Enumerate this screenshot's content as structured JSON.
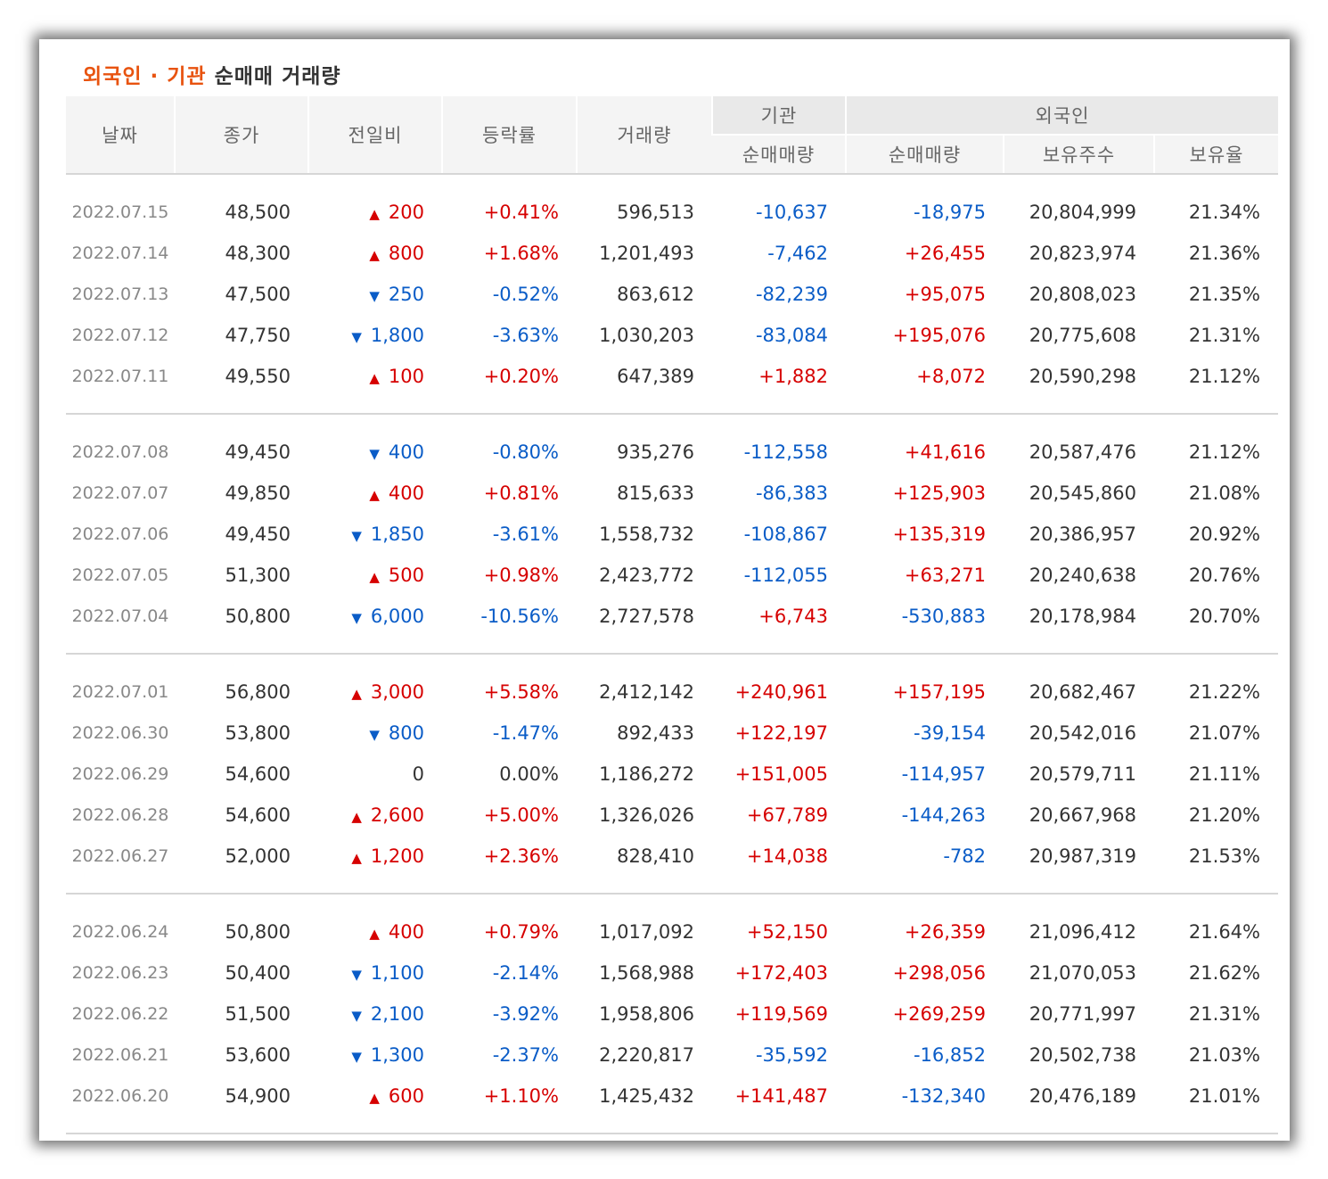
{
  "title": {
    "accent": "외국인 · 기관",
    "rest": "순매매 거래량"
  },
  "headers": {
    "date": "날짜",
    "close": "종가",
    "change": "전일비",
    "rate": "등락률",
    "volume": "거래량",
    "institution": "기관",
    "inst_net": "순매매량",
    "foreign": "외국인",
    "foreign_net": "순매매량",
    "holdings": "보유주수",
    "holding_ratio": "보유율"
  },
  "icons": {
    "up": "triangle-up-icon",
    "down": "triangle-down-icon"
  },
  "colors": {
    "up": "#d60000",
    "down": "#0a5cc7",
    "accent": "#e8530f"
  },
  "groups": [
    {
      "rows": [
        {
          "date": "2022.07.15",
          "close": "48,500",
          "dir": "up",
          "change": "200",
          "rate": "+0.41%",
          "volume": "596,513",
          "inst": "-10,637",
          "foreign": "-18,975",
          "holdings": "20,804,999",
          "ratio": "21.34%"
        },
        {
          "date": "2022.07.14",
          "close": "48,300",
          "dir": "up",
          "change": "800",
          "rate": "+1.68%",
          "volume": "1,201,493",
          "inst": "-7,462",
          "foreign": "+26,455",
          "holdings": "20,823,974",
          "ratio": "21.36%"
        },
        {
          "date": "2022.07.13",
          "close": "47,500",
          "dir": "down",
          "change": "250",
          "rate": "-0.52%",
          "volume": "863,612",
          "inst": "-82,239",
          "foreign": "+95,075",
          "holdings": "20,808,023",
          "ratio": "21.35%"
        },
        {
          "date": "2022.07.12",
          "close": "47,750",
          "dir": "down",
          "change": "1,800",
          "rate": "-3.63%",
          "volume": "1,030,203",
          "inst": "-83,084",
          "foreign": "+195,076",
          "holdings": "20,775,608",
          "ratio": "21.31%"
        },
        {
          "date": "2022.07.11",
          "close": "49,550",
          "dir": "up",
          "change": "100",
          "rate": "+0.20%",
          "volume": "647,389",
          "inst": "+1,882",
          "foreign": "+8,072",
          "holdings": "20,590,298",
          "ratio": "21.12%"
        }
      ]
    },
    {
      "rows": [
        {
          "date": "2022.07.08",
          "close": "49,450",
          "dir": "down",
          "change": "400",
          "rate": "-0.80%",
          "volume": "935,276",
          "inst": "-112,558",
          "foreign": "+41,616",
          "holdings": "20,587,476",
          "ratio": "21.12%"
        },
        {
          "date": "2022.07.07",
          "close": "49,850",
          "dir": "up",
          "change": "400",
          "rate": "+0.81%",
          "volume": "815,633",
          "inst": "-86,383",
          "foreign": "+125,903",
          "holdings": "20,545,860",
          "ratio": "21.08%"
        },
        {
          "date": "2022.07.06",
          "close": "49,450",
          "dir": "down",
          "change": "1,850",
          "rate": "-3.61%",
          "volume": "1,558,732",
          "inst": "-108,867",
          "foreign": "+135,319",
          "holdings": "20,386,957",
          "ratio": "20.92%"
        },
        {
          "date": "2022.07.05",
          "close": "51,300",
          "dir": "up",
          "change": "500",
          "rate": "+0.98%",
          "volume": "2,423,772",
          "inst": "-112,055",
          "foreign": "+63,271",
          "holdings": "20,240,638",
          "ratio": "20.76%"
        },
        {
          "date": "2022.07.04",
          "close": "50,800",
          "dir": "down",
          "change": "6,000",
          "rate": "-10.56%",
          "volume": "2,727,578",
          "inst": "+6,743",
          "foreign": "-530,883",
          "holdings": "20,178,984",
          "ratio": "20.70%"
        }
      ]
    },
    {
      "rows": [
        {
          "date": "2022.07.01",
          "close": "56,800",
          "dir": "up",
          "change": "3,000",
          "rate": "+5.58%",
          "volume": "2,412,142",
          "inst": "+240,961",
          "foreign": "+157,195",
          "holdings": "20,682,467",
          "ratio": "21.22%"
        },
        {
          "date": "2022.06.30",
          "close": "53,800",
          "dir": "down",
          "change": "800",
          "rate": "-1.47%",
          "volume": "892,433",
          "inst": "+122,197",
          "foreign": "-39,154",
          "holdings": "20,542,016",
          "ratio": "21.07%"
        },
        {
          "date": "2022.06.29",
          "close": "54,600",
          "dir": "flat",
          "change": "0",
          "rate": "0.00%",
          "volume": "1,186,272",
          "inst": "+151,005",
          "foreign": "-114,957",
          "holdings": "20,579,711",
          "ratio": "21.11%"
        },
        {
          "date": "2022.06.28",
          "close": "54,600",
          "dir": "up",
          "change": "2,600",
          "rate": "+5.00%",
          "volume": "1,326,026",
          "inst": "+67,789",
          "foreign": "-144,263",
          "holdings": "20,667,968",
          "ratio": "21.20%"
        },
        {
          "date": "2022.06.27",
          "close": "52,000",
          "dir": "up",
          "change": "1,200",
          "rate": "+2.36%",
          "volume": "828,410",
          "inst": "+14,038",
          "foreign": "-782",
          "holdings": "20,987,319",
          "ratio": "21.53%"
        }
      ]
    },
    {
      "rows": [
        {
          "date": "2022.06.24",
          "close": "50,800",
          "dir": "up",
          "change": "400",
          "rate": "+0.79%",
          "volume": "1,017,092",
          "inst": "+52,150",
          "foreign": "+26,359",
          "holdings": "21,096,412",
          "ratio": "21.64%"
        },
        {
          "date": "2022.06.23",
          "close": "50,400",
          "dir": "down",
          "change": "1,100",
          "rate": "-2.14%",
          "volume": "1,568,988",
          "inst": "+172,403",
          "foreign": "+298,056",
          "holdings": "21,070,053",
          "ratio": "21.62%"
        },
        {
          "date": "2022.06.22",
          "close": "51,500",
          "dir": "down",
          "change": "2,100",
          "rate": "-3.92%",
          "volume": "1,958,806",
          "inst": "+119,569",
          "foreign": "+269,259",
          "holdings": "20,771,997",
          "ratio": "21.31%"
        },
        {
          "date": "2022.06.21",
          "close": "53,600",
          "dir": "down",
          "change": "1,300",
          "rate": "-2.37%",
          "volume": "2,220,817",
          "inst": "-35,592",
          "foreign": "-16,852",
          "holdings": "20,502,738",
          "ratio": "21.03%"
        },
        {
          "date": "2022.06.20",
          "close": "54,900",
          "dir": "up",
          "change": "600",
          "rate": "+1.10%",
          "volume": "1,425,432",
          "inst": "+141,487",
          "foreign": "-132,340",
          "holdings": "20,476,189",
          "ratio": "21.01%"
        }
      ]
    }
  ]
}
